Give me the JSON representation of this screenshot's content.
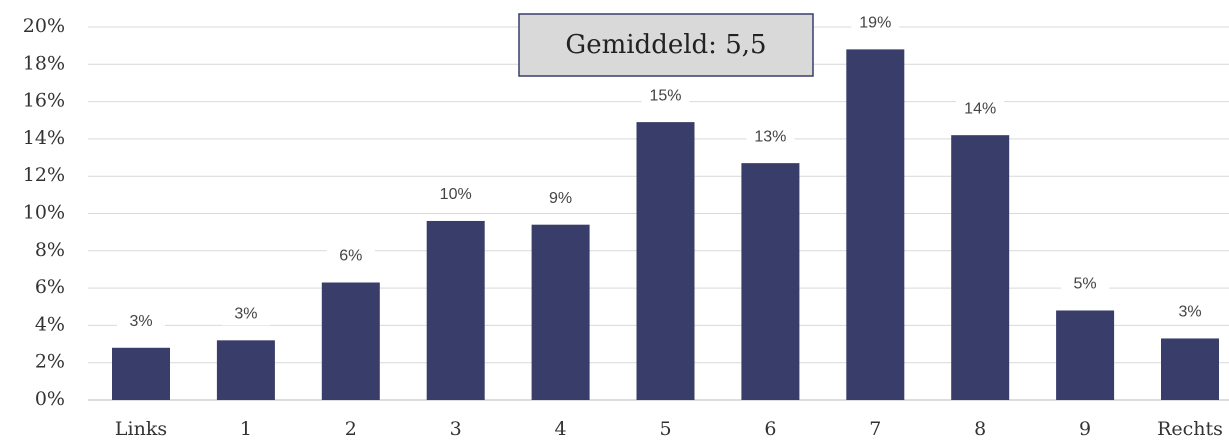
{
  "chart_data": {
    "type": "bar",
    "categories": [
      "Links",
      "1",
      "2",
      "3",
      "4",
      "5",
      "6",
      "7",
      "8",
      "9",
      "Rechts"
    ],
    "values": [
      2.8,
      3.2,
      6.3,
      9.6,
      9.4,
      14.9,
      12.7,
      18.8,
      14.2,
      4.8,
      3.3
    ],
    "value_labels": [
      "3%",
      "3%",
      "6%",
      "10%",
      "9%",
      "15%",
      "13%",
      "19%",
      "14%",
      "5%",
      "3%"
    ],
    "color": "#383d6a",
    "ylim": [
      0,
      20
    ],
    "yticks": [
      {
        "value": 0,
        "label": "0%"
      },
      {
        "value": 2,
        "label": "2%"
      },
      {
        "value": 4,
        "label": "4%"
      },
      {
        "value": 6,
        "label": "6%"
      },
      {
        "value": 8,
        "label": "8%"
      },
      {
        "value": 10,
        "label": "10%"
      },
      {
        "value": 12,
        "label": "12%"
      },
      {
        "value": 14,
        "label": "14%"
      },
      {
        "value": 16,
        "label": "16%"
      },
      {
        "value": 18,
        "label": "18%"
      },
      {
        "value": 20,
        "label": "20%"
      }
    ],
    "grid": true,
    "annotation": "Gemiddeld: 5,5"
  }
}
